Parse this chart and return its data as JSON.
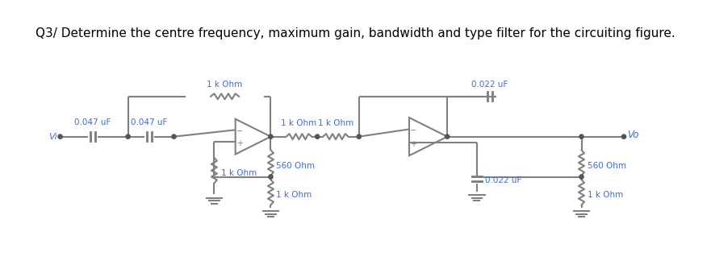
{
  "title": "Q3/ Determine the centre frequency, maximum gain, bandwidth and type filter for the circuiting figure.",
  "title_color": "#000000",
  "title_fontsize": 11,
  "bg_color": "#ffffff",
  "circuit_color": "#808080",
  "label_color": "#4169e1",
  "labels": {
    "R_top1": "1 k Ohm",
    "C1": "0.047 uF",
    "C2": "0.047 uF",
    "C_top2": "0.022 uF",
    "R_mid1": "1 k Ohm",
    "R_mid2": "1 k Ohm",
    "R_v1": "1 k Ohm",
    "R_out1": "560 Ohm",
    "R_bot1": "1 k Ohm",
    "C_bot2": "0.022 uF",
    "R_out2": "560 Ohm",
    "R_bot2": "1 k Ohm",
    "Vi": "Vi",
    "Vo": "Vo"
  }
}
